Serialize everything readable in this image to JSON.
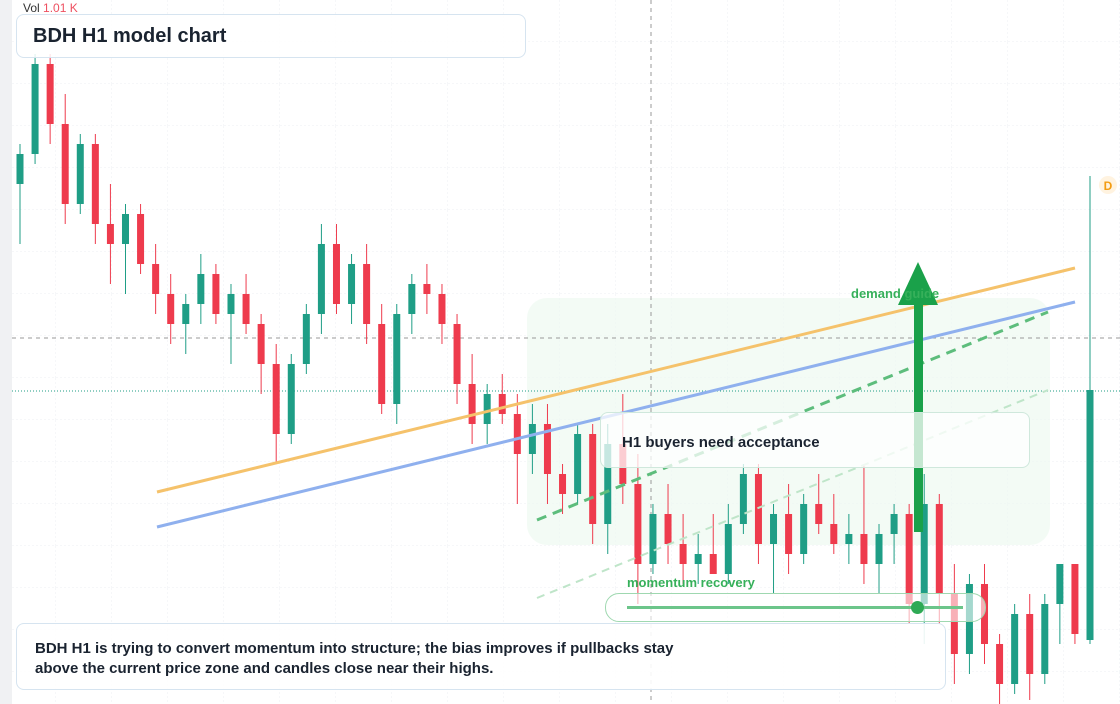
{
  "chart_data": {
    "type": "candlestick",
    "title": "BDH H1 model chart",
    "volume": {
      "label": "Vol",
      "value": "1.01 K"
    },
    "annotations": [
      "demand guide",
      "H1 buyers need acceptance",
      "momentum recovery"
    ],
    "note_lines": [
      "BDH H1 is trying to convert momentum into structure; the bias improves if pullbacks stay",
      "above the current price zone and candles close near their highs."
    ],
    "badge": "D",
    "up_color": "#1f9e86",
    "down_color": "#ee3b4d",
    "ylim": [
      10,
      45.2
    ],
    "open": [
      36,
      37.5,
      42,
      39,
      35,
      38,
      34,
      33,
      34.5,
      32,
      30.5,
      29,
      30,
      31.5,
      29.5,
      30.5,
      29,
      27,
      23.5,
      27,
      29.5,
      33,
      30,
      32,
      29,
      25,
      29.5,
      31,
      30.5,
      29,
      26,
      24,
      25.5,
      24.5,
      22.5,
      24,
      21.5,
      20.5,
      23.5,
      19,
      23,
      21,
      17,
      19.5,
      18,
      17,
      17.5,
      16.5,
      19,
      21.5,
      18,
      19.5,
      17.5,
      20,
      19,
      18,
      18.5,
      17,
      18.5,
      19.5,
      15,
      20,
      15.5,
      12.5,
      16,
      13,
      11,
      14.5,
      11.5,
      15,
      17,
      13.2
    ],
    "high": [
      38,
      42.5,
      42.5,
      40.5,
      38.5,
      38.5,
      36,
      35,
      35,
      33,
      31.5,
      30.5,
      32.5,
      32,
      31,
      31.5,
      29.5,
      28,
      27.5,
      30,
      34,
      34,
      32.5,
      33,
      30,
      30,
      31.5,
      32,
      31,
      29.5,
      27.5,
      26,
      26.5,
      25.5,
      25,
      25,
      22,
      24,
      24,
      24,
      25.5,
      22.5,
      20,
      21,
      19.5,
      18.5,
      19.5,
      20,
      22,
      22,
      20,
      21,
      20.5,
      21.5,
      20.5,
      19.5,
      22,
      19,
      20,
      20,
      21.5,
      20.5,
      17,
      16.5,
      17,
      13.5,
      15,
      15.5,
      15.5,
      17,
      17,
      36.4
    ],
    "low": [
      33,
      37,
      38,
      34,
      34.5,
      33,
      31,
      30.5,
      31.5,
      29.5,
      28,
      27.5,
      29,
      29,
      27,
      28.5,
      25.5,
      22,
      23,
      26.5,
      28.5,
      29.5,
      29,
      28,
      24.5,
      24,
      28.5,
      29.5,
      28,
      25,
      23,
      23,
      24,
      20,
      21.5,
      20,
      19.5,
      20,
      18,
      17.5,
      20,
      15,
      16.5,
      17,
      16,
      16,
      16.5,
      16,
      18.5,
      17,
      15.5,
      16.5,
      17,
      18.5,
      17.5,
      17,
      16,
      15.5,
      17,
      14,
      13,
      14,
      11,
      11.5,
      12,
      10,
      10.5,
      10.2,
      11,
      13,
      13,
      13
    ],
    "close": [
      37.5,
      42,
      39,
      35,
      38,
      34,
      33,
      34.5,
      32,
      30.5,
      29,
      30,
      31.5,
      29.5,
      30.5,
      29,
      27,
      23.5,
      27,
      29.5,
      33,
      30,
      32,
      29,
      25,
      29.5,
      31,
      30.5,
      29,
      26,
      24,
      25.5,
      24.5,
      22.5,
      24,
      21.5,
      20.5,
      23.5,
      19,
      23,
      21,
      17,
      19.5,
      18,
      17,
      17.5,
      16.5,
      19,
      21.5,
      18,
      19.5,
      17.5,
      20,
      19,
      18,
      18.5,
      17,
      18.5,
      19.5,
      15,
      20,
      15.5,
      12.5,
      16,
      13,
      11,
      14.5,
      11.5,
      15,
      17,
      13.5,
      25.7
    ]
  }
}
